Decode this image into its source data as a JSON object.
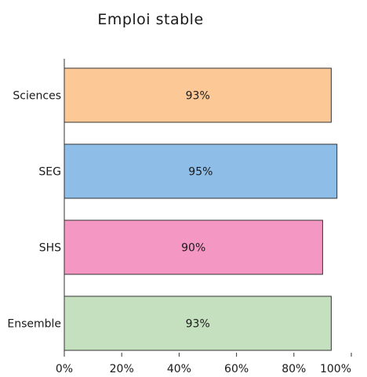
{
  "chart_data": {
    "type": "bar",
    "orientation": "horizontal",
    "title": "Emploi stable",
    "xlabel": "",
    "ylabel": "",
    "categories": [
      "Sciences",
      "SEG",
      "SHS",
      "Ensemble"
    ],
    "values": [
      93,
      95,
      90,
      93
    ],
    "data_labels": [
      "93%",
      "95%",
      "90%",
      "93%"
    ],
    "colors": [
      "#fcc896",
      "#8ebde8",
      "#f497c2",
      "#c5e0bf"
    ],
    "bar_border_color": "#333333",
    "xlim": [
      0,
      100
    ],
    "x_ticks": [
      0,
      20,
      40,
      60,
      80,
      100
    ],
    "x_tick_labels": [
      "0%",
      "20%",
      "40%",
      "60%",
      "80%",
      "100%"
    ],
    "grid": false,
    "legend": "none"
  }
}
